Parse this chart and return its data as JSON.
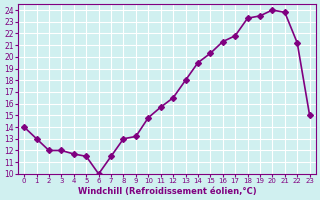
{
  "x": [
    0,
    1,
    2,
    3,
    4,
    5,
    6,
    7,
    8,
    9,
    10,
    11,
    12,
    13,
    14,
    15,
    16,
    17,
    18,
    19,
    20,
    21,
    22,
    23
  ],
  "y": [
    14,
    13,
    12,
    12,
    11.7,
    11.5,
    10,
    11.5,
    13,
    13.2,
    14.8,
    15.7,
    16.5,
    18,
    19.5,
    20.3,
    21.3,
    21.8,
    23.3,
    23.5,
    24,
    23.8,
    21.2,
    15
  ],
  "line_color": "#800080",
  "marker": "D",
  "markersize": 3,
  "linewidth": 1.2,
  "xlabel": "Windchill (Refroidissement éolien,°C)",
  "ylabel": "",
  "ylim": [
    10,
    24.5
  ],
  "xlim": [
    -0.5,
    23.5
  ],
  "yticks": [
    10,
    11,
    12,
    13,
    14,
    15,
    16,
    17,
    18,
    19,
    20,
    21,
    22,
    23,
    24
  ],
  "xticks": [
    0,
    1,
    2,
    3,
    4,
    5,
    6,
    7,
    8,
    9,
    10,
    11,
    12,
    13,
    14,
    15,
    16,
    17,
    18,
    19,
    20,
    21,
    22,
    23
  ],
  "bg_color": "#d0f0f0",
  "grid_color": "#ffffff",
  "tick_color": "#800080",
  "label_color": "#800080"
}
